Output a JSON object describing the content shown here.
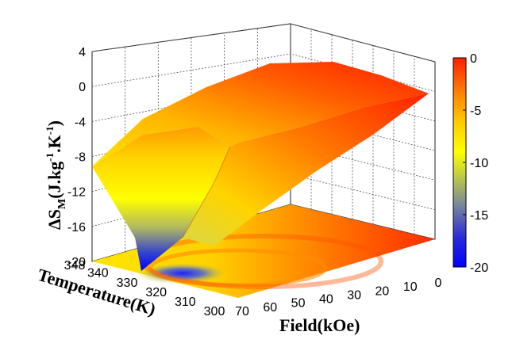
{
  "chart_data": {
    "type": "surface3d",
    "xlabel": "Field(kOe)",
    "ylabel": "Temperature(K)",
    "zlabel_parts": {
      "delta": "ΔS",
      "sub": "M",
      "open": "(J.kg",
      "sup1": "-1",
      "mid": ".K",
      "sup2": "-1",
      "close": ")"
    },
    "x_ticks": [
      "0",
      "10",
      "20",
      "30",
      "40",
      "50",
      "60",
      "70"
    ],
    "y_ticks": [
      "300",
      "310",
      "320",
      "330",
      "340",
      "348"
    ],
    "z_ticks": [
      "4",
      "0",
      "-4",
      "-8",
      "-12",
      "-16",
      "-20"
    ],
    "colorbar_ticks": [
      "0",
      "-5",
      "-10",
      "-15",
      "-20"
    ],
    "xlim": [
      0,
      70
    ],
    "ylim": [
      300,
      348
    ],
    "zlim": [
      -20,
      4
    ],
    "clim": [
      -20,
      0
    ],
    "colormap": [
      "#0000ff",
      "#2a2ad8",
      "#7a8a98",
      "#c8d23a",
      "#ffff00",
      "#ffc800",
      "#ff7800",
      "#ff1e00"
    ],
    "grid": true,
    "contour_projection": true,
    "surface_edges": [
      {
        "edge": "field = 0 kOe",
        "temperature": [
          300,
          348
        ],
        "value": [
          0,
          0
        ]
      },
      {
        "edge": "T = 300 K",
        "field": [
          0,
          70
        ],
        "value": [
          0,
          -2.5
        ]
      },
      {
        "edge": "T = 348 K",
        "field": [
          0,
          70
        ],
        "value": [
          0,
          -9.5
        ]
      },
      {
        "edge": "field = 70 kOe",
        "temperature": [
          300,
          348
        ],
        "value": [
          -2.5,
          -9.5
        ]
      }
    ],
    "peak": {
      "field": 70,
      "temperature": 330,
      "value": -20
    }
  }
}
